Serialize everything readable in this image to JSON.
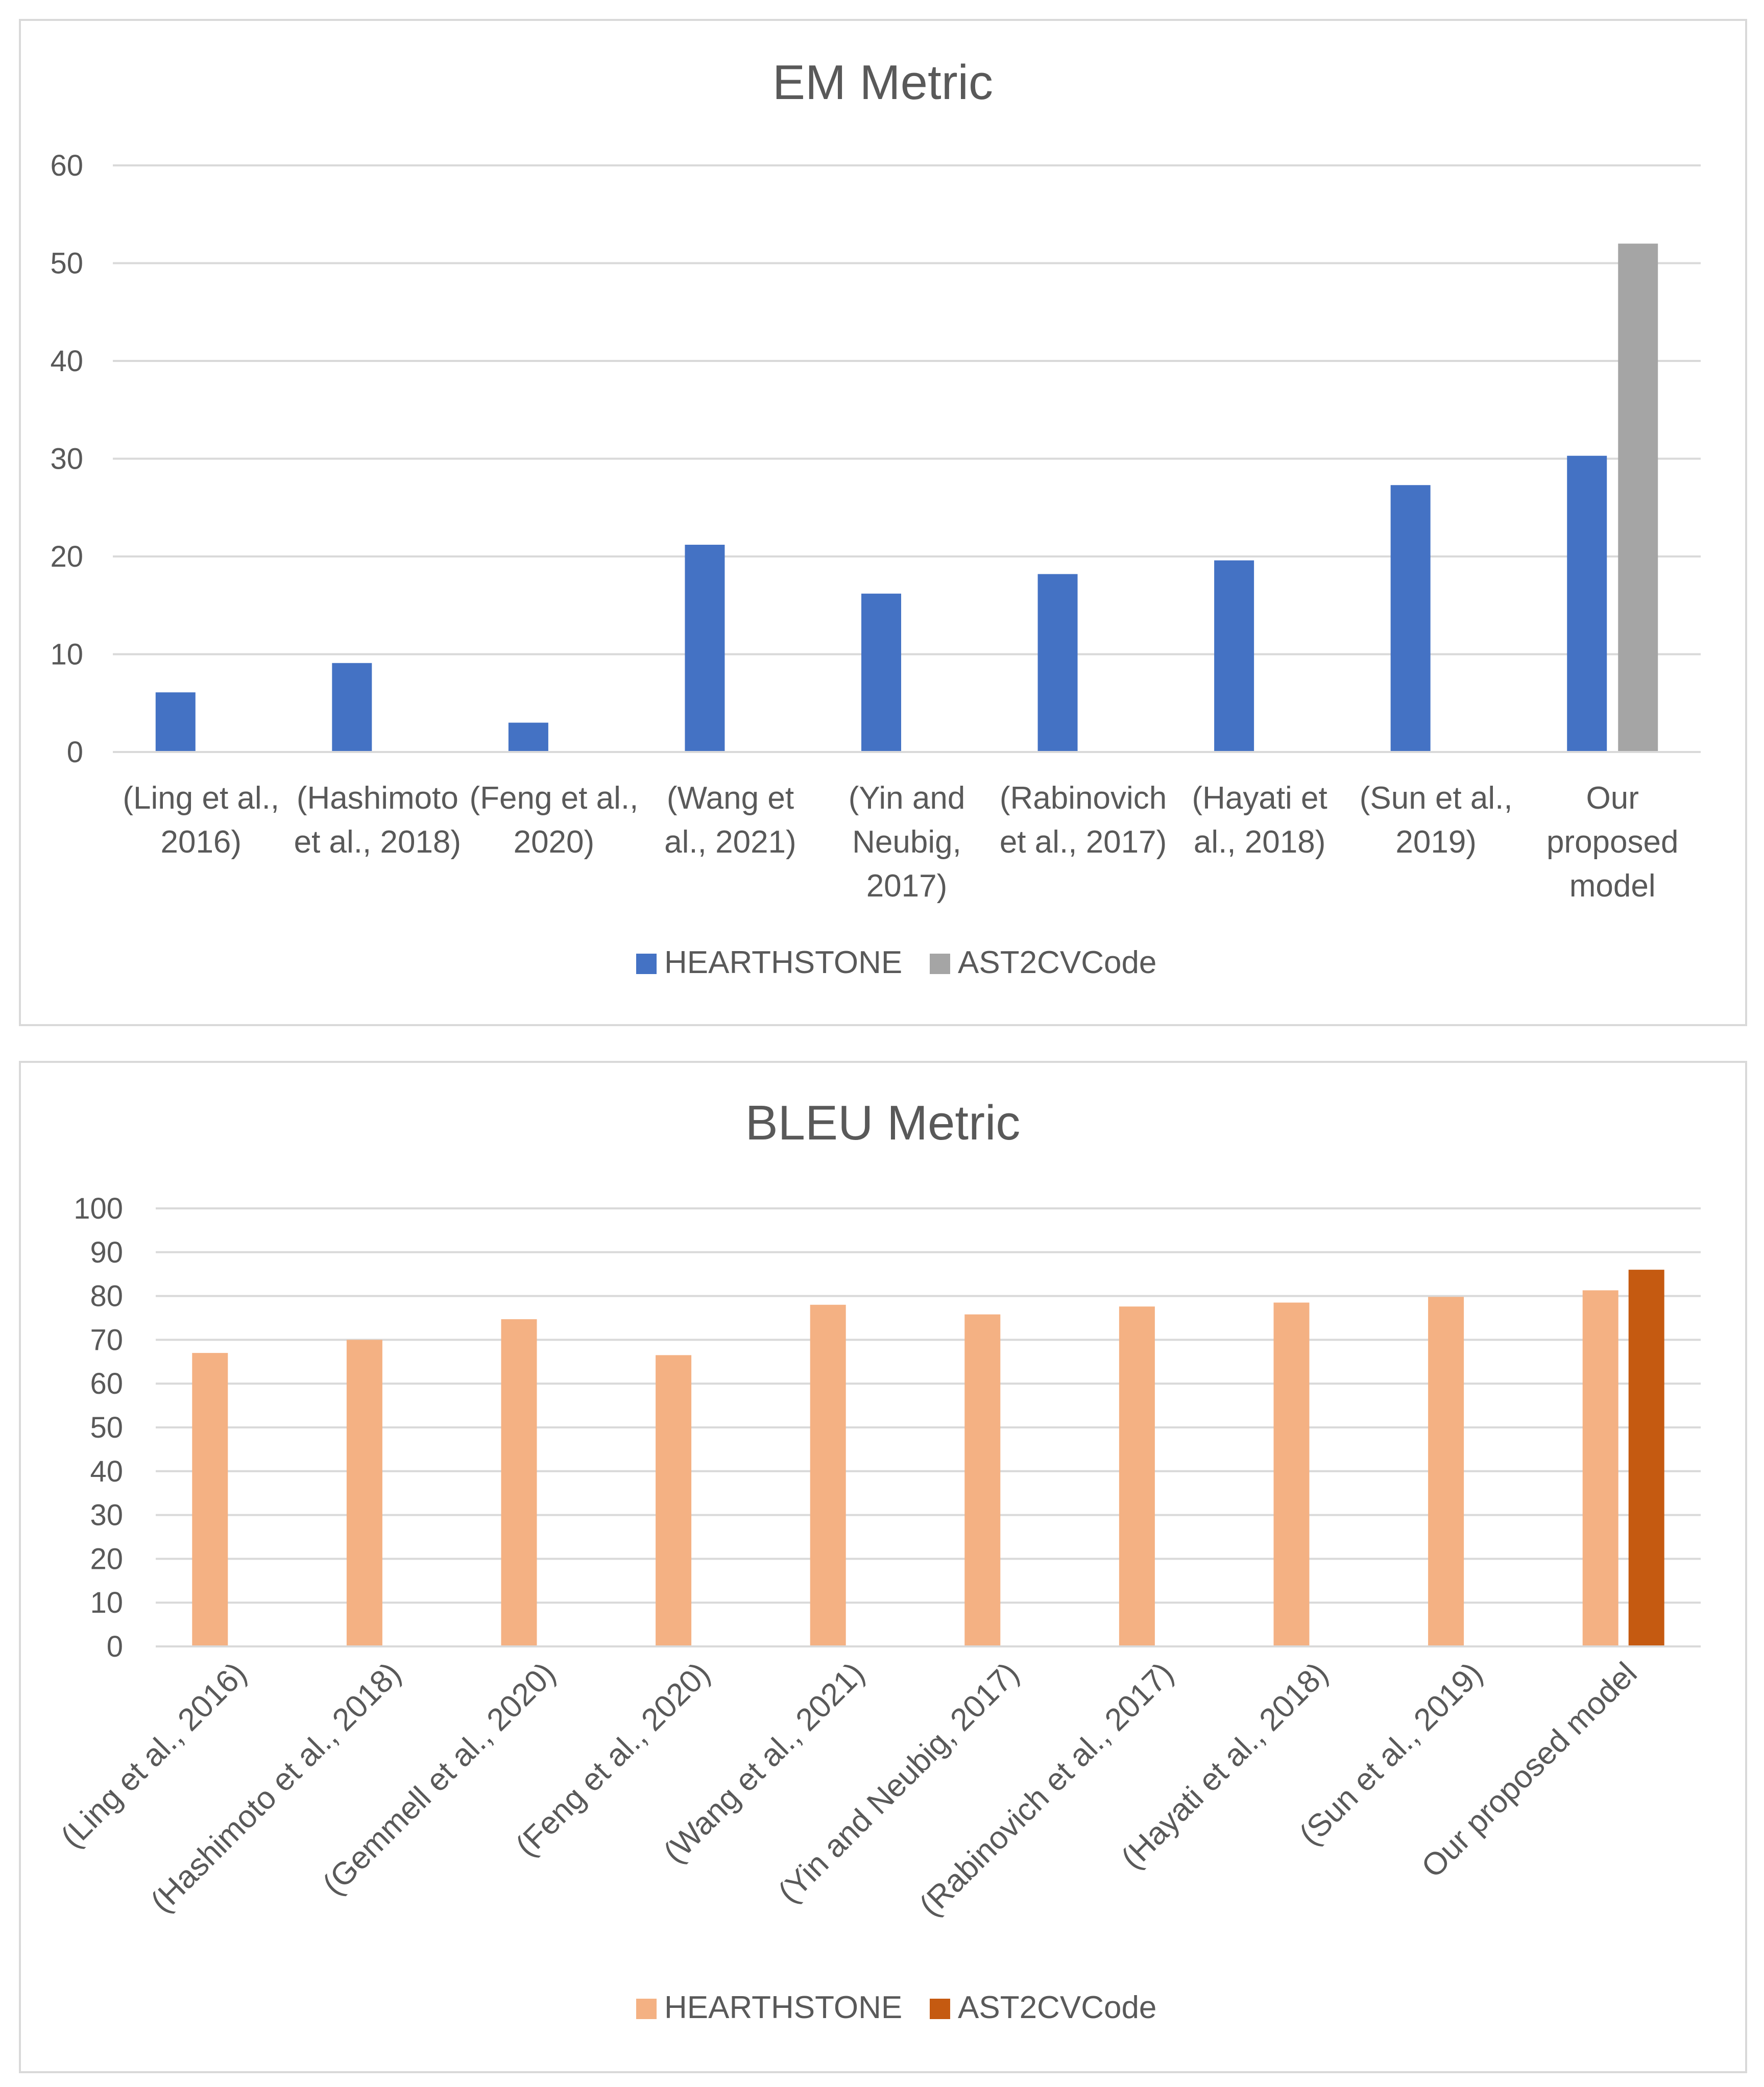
{
  "chart_data": [
    {
      "type": "bar",
      "title": "EM Metric",
      "xlabel": "",
      "ylabel": "",
      "ylim": [
        0,
        60
      ],
      "yticks": [
        0,
        10,
        20,
        30,
        40,
        50,
        60
      ],
      "categories": [
        [
          "(Ling et al.,",
          "2016)"
        ],
        [
          "(Hashimoto",
          "et al., 2018)"
        ],
        [
          "(Feng et al.,",
          "2020)"
        ],
        [
          "(Wang et",
          "al., 2021)"
        ],
        [
          "(Yin and",
          "Neubig,",
          "2017)"
        ],
        [
          "(Rabinovich",
          "et al., 2017)"
        ],
        [
          "(Hayati et",
          "al., 2018)"
        ],
        [
          "(Sun et al.,",
          "2019)"
        ],
        [
          "Our",
          "proposed",
          "model"
        ]
      ],
      "series": [
        {
          "name": "HEARTHSTONE",
          "color": "#4472c4",
          "values": [
            6.1,
            9.1,
            3.0,
            21.2,
            16.2,
            18.2,
            19.6,
            27.3,
            30.3
          ]
        },
        {
          "name": "AST2CVCode",
          "color": "#a5a5a5",
          "values": [
            null,
            null,
            null,
            null,
            null,
            null,
            null,
            null,
            52.0
          ]
        }
      ],
      "legend": "bottom"
    },
    {
      "type": "bar",
      "title": "BLEU Metric",
      "xlabel": "",
      "ylabel": "",
      "ylim": [
        0,
        100
      ],
      "yticks": [
        0,
        10,
        20,
        30,
        40,
        50,
        60,
        70,
        80,
        90,
        100
      ],
      "categories": [
        "(Ling et al., 2016)",
        "(Hashimoto et al., 2018)",
        "(Gemmell et al., 2020)",
        "(Feng et al., 2020)",
        "(Wang et al., 2021)",
        "(Yin and Neubig, 2017)",
        "(Rabinovich et al., 2017)",
        "(Hayati et al., 2018)",
        "(Sun et al., 2019)",
        "Our proposed model"
      ],
      "series": [
        {
          "name": "HEARTHSTONE",
          "color": "#f4b183",
          "values": [
            67.0,
            70.0,
            74.7,
            66.5,
            78.0,
            75.8,
            77.6,
            78.5,
            79.8,
            81.3
          ]
        },
        {
          "name": "AST2CVCode",
          "color": "#c55a11",
          "values": [
            null,
            null,
            null,
            null,
            null,
            null,
            null,
            null,
            null,
            86.0
          ]
        }
      ],
      "legend": "bottom"
    }
  ]
}
